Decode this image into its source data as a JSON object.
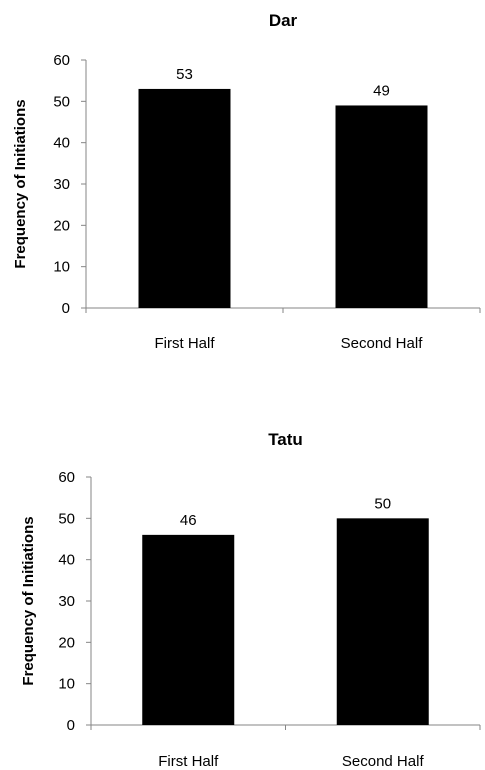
{
  "chart_data": [
    {
      "type": "bar",
      "title": "Dar",
      "ylabel": "Frequency of Initiations",
      "xlabel": "",
      "categories": [
        "First Half",
        "Second Half"
      ],
      "values": [
        53,
        49
      ],
      "data_labels": [
        "53",
        "49"
      ],
      "ylim": [
        0,
        60
      ],
      "yticks": [
        "0",
        "10",
        "20",
        "30",
        "40",
        "50",
        "60"
      ],
      "grid": false,
      "bar_color": "#000000"
    },
    {
      "type": "bar",
      "title": "Tatu",
      "ylabel": "Frequency of Initiations",
      "xlabel": "",
      "categories": [
        "First Half",
        "Second Half"
      ],
      "values": [
        46,
        50
      ],
      "data_labels": [
        "46",
        "50"
      ],
      "ylim": [
        0,
        60
      ],
      "yticks": [
        "0",
        "10",
        "20",
        "30",
        "40",
        "50",
        "60"
      ],
      "grid": false,
      "bar_color": "#000000"
    }
  ]
}
